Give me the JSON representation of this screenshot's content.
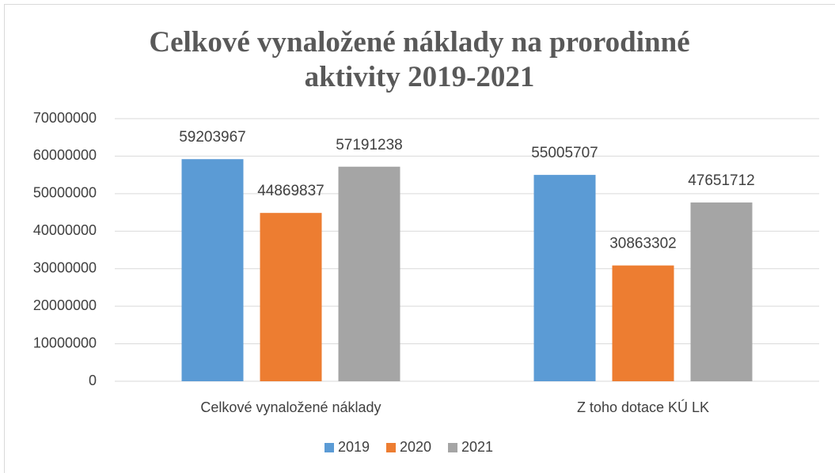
{
  "chart_data": {
    "type": "bar",
    "title": "Celkové vynaložené náklady na prorodinné aktivity 2019-2021",
    "categories": [
      "Celkové vynaložené náklady",
      "Z toho dotace KÚ LK"
    ],
    "series": [
      {
        "name": "2019",
        "color": "#5b9bd5",
        "values": [
          59203967,
          55005707
        ]
      },
      {
        "name": "2020",
        "color": "#ed7d31",
        "values": [
          44869837,
          30863302
        ]
      },
      {
        "name": "2021",
        "color": "#a5a5a5",
        "values": [
          57191238,
          47651712
        ]
      }
    ],
    "ylim": [
      0,
      70000000
    ],
    "yticks": [
      0,
      10000000,
      20000000,
      30000000,
      40000000,
      50000000,
      60000000,
      70000000
    ],
    "grid": true,
    "legend": "bottom"
  }
}
